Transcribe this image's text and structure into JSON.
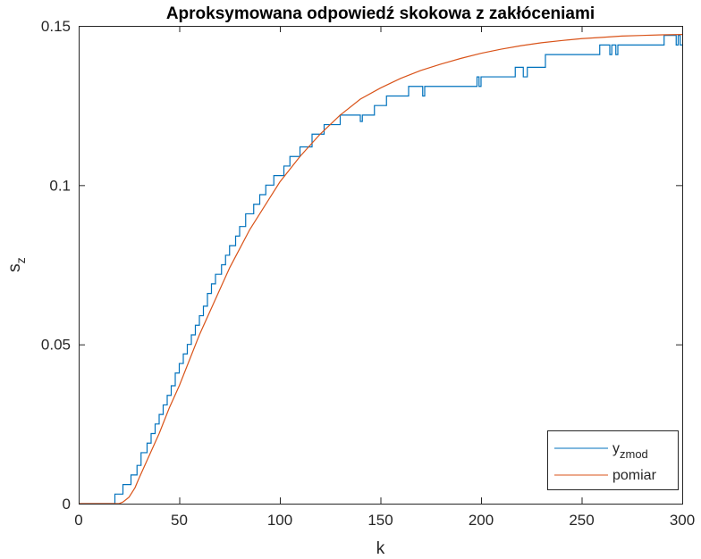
{
  "chart_data": {
    "type": "line",
    "title": "Aproksymowana odpowiedź skokowa z zakłóceniami",
    "xlabel": "k",
    "ylabel": {
      "base": "s",
      "sub": "z"
    },
    "xlim": [
      0,
      300
    ],
    "ylim": [
      0,
      0.15
    ],
    "xticks": [
      0,
      50,
      100,
      150,
      200,
      250,
      300
    ],
    "yticks": [
      0,
      0.05,
      0.1,
      0.15
    ],
    "xtick_labels": [
      "0",
      "50",
      "100",
      "150",
      "200",
      "250",
      "300"
    ],
    "ytick_labels": [
      "0",
      "0.05",
      "0.1",
      "0.15"
    ],
    "grid": false,
    "legend": "bottom-right",
    "series": [
      {
        "name": "y_zmod",
        "label_base": "y",
        "label_sub": "zmod",
        "color": "#0072BD",
        "style": "stairs",
        "points": [
          [
            0,
            0
          ],
          [
            18,
            0
          ],
          [
            18,
            0.003
          ],
          [
            22,
            0.003
          ],
          [
            22,
            0.006
          ],
          [
            26,
            0.006
          ],
          [
            26,
            0.009
          ],
          [
            29,
            0.009
          ],
          [
            29,
            0.012
          ],
          [
            31,
            0.012
          ],
          [
            31,
            0.016
          ],
          [
            34,
            0.016
          ],
          [
            34,
            0.019
          ],
          [
            36,
            0.019
          ],
          [
            36,
            0.022
          ],
          [
            38,
            0.022
          ],
          [
            38,
            0.025
          ],
          [
            40,
            0.025
          ],
          [
            40,
            0.028
          ],
          [
            42,
            0.028
          ],
          [
            42,
            0.031
          ],
          [
            44,
            0.031
          ],
          [
            44,
            0.034
          ],
          [
            46,
            0.034
          ],
          [
            46,
            0.037
          ],
          [
            48,
            0.037
          ],
          [
            48,
            0.041
          ],
          [
            50,
            0.041
          ],
          [
            50,
            0.044
          ],
          [
            52,
            0.044
          ],
          [
            52,
            0.047
          ],
          [
            54,
            0.047
          ],
          [
            54,
            0.05
          ],
          [
            56,
            0.05
          ],
          [
            56,
            0.053
          ],
          [
            58,
            0.053
          ],
          [
            58,
            0.056
          ],
          [
            60,
            0.056
          ],
          [
            60,
            0.059
          ],
          [
            62,
            0.059
          ],
          [
            62,
            0.062
          ],
          [
            64,
            0.062
          ],
          [
            64,
            0.066
          ],
          [
            66,
            0.066
          ],
          [
            66,
            0.069
          ],
          [
            68,
            0.069
          ],
          [
            68,
            0.072
          ],
          [
            71,
            0.072
          ],
          [
            71,
            0.075
          ],
          [
            73,
            0.075
          ],
          [
            73,
            0.078
          ],
          [
            75,
            0.078
          ],
          [
            75,
            0.081
          ],
          [
            78,
            0.081
          ],
          [
            78,
            0.084
          ],
          [
            80,
            0.084
          ],
          [
            80,
            0.087
          ],
          [
            83,
            0.087
          ],
          [
            83,
            0.091
          ],
          [
            87,
            0.091
          ],
          [
            87,
            0.094
          ],
          [
            90,
            0.094
          ],
          [
            90,
            0.097
          ],
          [
            93,
            0.097
          ],
          [
            93,
            0.1
          ],
          [
            97,
            0.1
          ],
          [
            97,
            0.103
          ],
          [
            102,
            0.103
          ],
          [
            102,
            0.106
          ],
          [
            105,
            0.106
          ],
          [
            105,
            0.109
          ],
          [
            110,
            0.109
          ],
          [
            110,
            0.112
          ],
          [
            116,
            0.112
          ],
          [
            116,
            0.116
          ],
          [
            122,
            0.116
          ],
          [
            122,
            0.119
          ],
          [
            130,
            0.119
          ],
          [
            130,
            0.122
          ],
          [
            140,
            0.122
          ],
          [
            140,
            0.12
          ],
          [
            141,
            0.12
          ],
          [
            141,
            0.122
          ],
          [
            147,
            0.122
          ],
          [
            147,
            0.125
          ],
          [
            153,
            0.125
          ],
          [
            153,
            0.128
          ],
          [
            164,
            0.128
          ],
          [
            164,
            0.131
          ],
          [
            171,
            0.131
          ],
          [
            171,
            0.128
          ],
          [
            172,
            0.128
          ],
          [
            172,
            0.131
          ],
          [
            198,
            0.131
          ],
          [
            198,
            0.134
          ],
          [
            199,
            0.134
          ],
          [
            199,
            0.131
          ],
          [
            200,
            0.131
          ],
          [
            200,
            0.134
          ],
          [
            217,
            0.134
          ],
          [
            217,
            0.137
          ],
          [
            221,
            0.137
          ],
          [
            221,
            0.134
          ],
          [
            223,
            0.134
          ],
          [
            223,
            0.137
          ],
          [
            232,
            0.137
          ],
          [
            232,
            0.141
          ],
          [
            259,
            0.141
          ],
          [
            259,
            0.144
          ],
          [
            264,
            0.144
          ],
          [
            264,
            0.141
          ],
          [
            265,
            0.141
          ],
          [
            265,
            0.144
          ],
          [
            267,
            0.144
          ],
          [
            267,
            0.141
          ],
          [
            268,
            0.141
          ],
          [
            268,
            0.144
          ],
          [
            291,
            0.144
          ],
          [
            291,
            0.147
          ],
          [
            297,
            0.147
          ],
          [
            297,
            0.144
          ],
          [
            298,
            0.144
          ],
          [
            298,
            0.147
          ],
          [
            299,
            0.147
          ],
          [
            299,
            0.144
          ],
          [
            300,
            0.144
          ]
        ]
      },
      {
        "name": "pomiar",
        "label_base": "pomiar",
        "label_sub": "",
        "color": "#D95319",
        "style": "line",
        "points": [
          [
            0,
            0
          ],
          [
            20,
            0
          ],
          [
            22,
            0.0005
          ],
          [
            25,
            0.002
          ],
          [
            28,
            0.005
          ],
          [
            30,
            0.008
          ],
          [
            35,
            0.015
          ],
          [
            40,
            0.022
          ],
          [
            45,
            0.03
          ],
          [
            50,
            0.037
          ],
          [
            55,
            0.045
          ],
          [
            60,
            0.053
          ],
          [
            65,
            0.06
          ],
          [
            70,
            0.067
          ],
          [
            75,
            0.074
          ],
          [
            80,
            0.08
          ],
          [
            85,
            0.086
          ],
          [
            90,
            0.091
          ],
          [
            95,
            0.096
          ],
          [
            100,
            0.101
          ],
          [
            110,
            0.109
          ],
          [
            120,
            0.116
          ],
          [
            130,
            0.122
          ],
          [
            140,
            0.127
          ],
          [
            150,
            0.1305
          ],
          [
            160,
            0.1335
          ],
          [
            170,
            0.136
          ],
          [
            180,
            0.138
          ],
          [
            190,
            0.1398
          ],
          [
            200,
            0.1414
          ],
          [
            210,
            0.1427
          ],
          [
            220,
            0.1438
          ],
          [
            230,
            0.1447
          ],
          [
            240,
            0.1454
          ],
          [
            250,
            0.146
          ],
          [
            260,
            0.1464
          ],
          [
            270,
            0.1468
          ],
          [
            280,
            0.147
          ],
          [
            290,
            0.1472
          ],
          [
            300,
            0.1473
          ]
        ]
      }
    ]
  }
}
